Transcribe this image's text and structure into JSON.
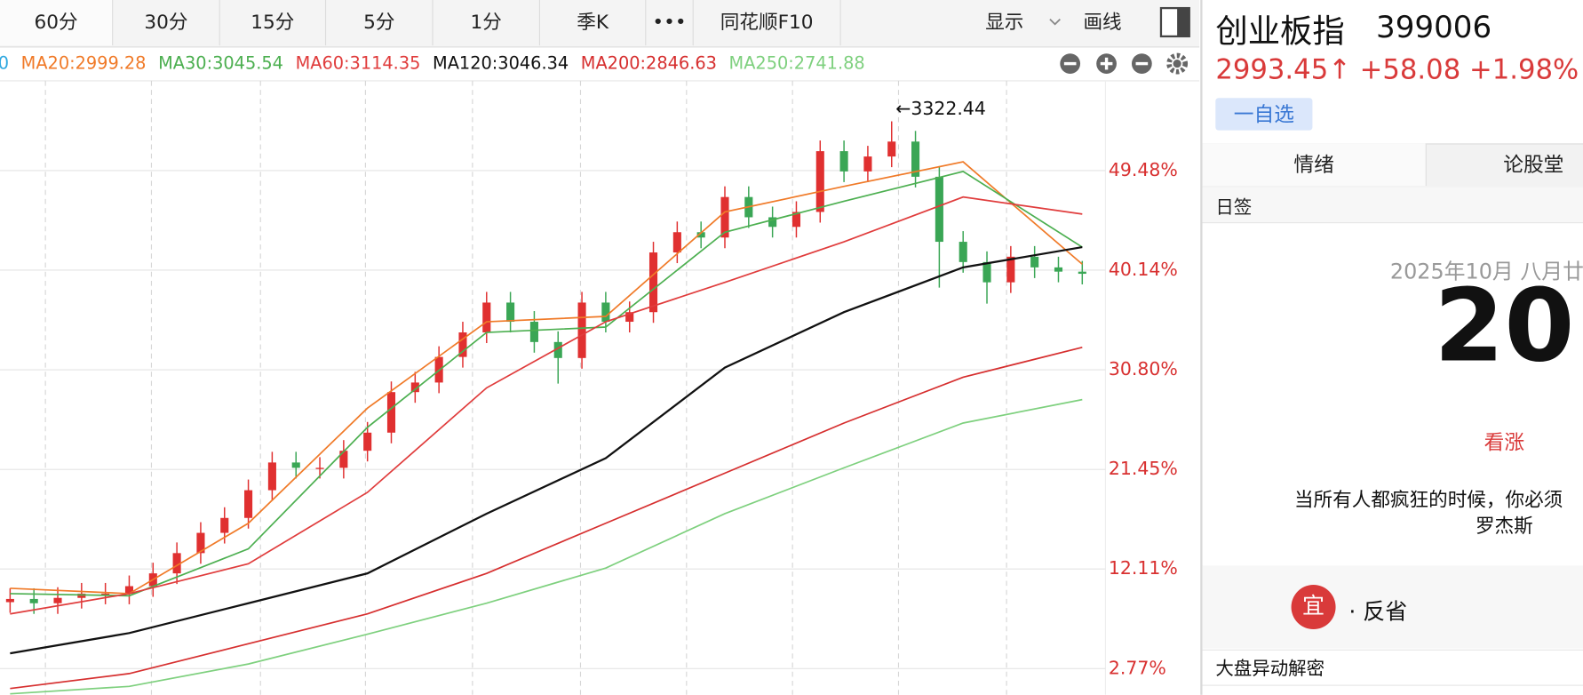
{
  "toolbar": {
    "tabs": [
      "60分",
      "30分",
      "15分",
      "5分",
      "1分",
      "季K",
      "•••",
      "同花顺F10"
    ],
    "display": "显示",
    "draw": "画线"
  },
  "ma_legend_fragment": {
    "text": "0",
    "color": "#2fa8e0"
  },
  "chart_data": {
    "type": "candlestick",
    "annotation": "←3322.44",
    "up_color": "#e03030",
    "down_color": "#3aa655",
    "ylim": [
      0.3,
      57.9
    ],
    "yticks": [
      {
        "value": 49.48,
        "label": "49.48%"
      },
      {
        "value": 40.14,
        "label": "40.14%"
      },
      {
        "value": 30.8,
        "label": "30.80%"
      },
      {
        "value": 21.45,
        "label": "21.45%"
      },
      {
        "value": 12.11,
        "label": "12.11%"
      },
      {
        "value": 2.77,
        "label": "2.77%"
      }
    ],
    "grid": true,
    "open": [
      9.0,
      9.3,
      8.9,
      9.4,
      9.8,
      9.8,
      10.5,
      11.7,
      13.6,
      15.5,
      16.9,
      19.5,
      22.1,
      21.6,
      21.6,
      23.2,
      24.9,
      28.7,
      29.6,
      32.0,
      34.3,
      37.1,
      35.3,
      33.4,
      31.9,
      37.1,
      35.3,
      36.2,
      41.8,
      43.7,
      43.2,
      47.0,
      45.1,
      44.2,
      45.6,
      51.3,
      49.4,
      50.8,
      52.2,
      48.9,
      42.8,
      40.9,
      39.0,
      41.4,
      40.4,
      40.0
    ],
    "high": [
      10.3,
      10.3,
      10.4,
      10.8,
      10.8,
      11.5,
      12.7,
      14.6,
      16.5,
      17.9,
      20.5,
      23.1,
      23.1,
      22.6,
      24.2,
      25.9,
      29.7,
      30.6,
      33.0,
      35.3,
      38.1,
      38.1,
      36.3,
      34.4,
      38.1,
      38.1,
      37.2,
      42.8,
      44.7,
      44.7,
      48.0,
      48.0,
      46.1,
      46.6,
      52.3,
      52.3,
      51.8,
      54.1,
      53.2,
      49.9,
      43.8,
      41.9,
      42.4,
      42.4,
      41.4,
      41.0
    ],
    "low": [
      8.0,
      7.9,
      7.9,
      8.4,
      8.8,
      8.8,
      9.5,
      10.7,
      12.6,
      14.5,
      15.9,
      18.5,
      20.6,
      20.6,
      20.6,
      22.2,
      23.9,
      27.7,
      28.6,
      31.0,
      33.3,
      34.3,
      32.4,
      29.5,
      30.9,
      34.3,
      34.3,
      35.2,
      40.8,
      42.2,
      42.2,
      44.1,
      43.2,
      43.2,
      44.6,
      48.4,
      48.4,
      49.8,
      47.9,
      38.5,
      39.9,
      37.0,
      38.0,
      39.4,
      39.0,
      38.8
    ],
    "close": [
      9.3,
      8.9,
      9.4,
      9.8,
      9.8,
      10.5,
      11.7,
      13.6,
      15.5,
      16.9,
      19.5,
      22.1,
      21.6,
      21.6,
      23.2,
      24.9,
      28.7,
      29.6,
      32.0,
      34.3,
      37.1,
      35.3,
      33.4,
      31.9,
      37.1,
      35.3,
      36.2,
      41.8,
      43.7,
      43.2,
      47.0,
      45.1,
      44.2,
      45.6,
      51.3,
      49.4,
      50.8,
      52.2,
      48.9,
      42.8,
      40.9,
      39.0,
      41.4,
      40.4,
      40.0,
      39.8
    ],
    "line_x": [
      0,
      5,
      10,
      15,
      20,
      25,
      30,
      35,
      40,
      45
    ],
    "series": [
      {
        "name": "MA20:2999.28",
        "color": "#f07a28",
        "values": [
          10.3,
          9.8,
          16.4,
          27.2,
          35.3,
          35.8,
          45.6,
          48.0,
          50.3,
          40.7
        ]
      },
      {
        "name": "MA30:3045.54",
        "color": "#4caf50",
        "values": [
          9.8,
          9.6,
          14.0,
          25.4,
          34.3,
          34.8,
          43.7,
          46.6,
          49.4,
          42.3
        ]
      },
      {
        "name": "MA60:3114.35",
        "color": "#e03c3c",
        "values": [
          7.9,
          9.8,
          12.6,
          19.3,
          29.1,
          35.3,
          39.0,
          42.8,
          47.0,
          45.4
        ]
      },
      {
        "name": "MA120:3046.34",
        "color": "#111111",
        "values": [
          4.2,
          6.1,
          8.9,
          11.7,
          17.3,
          22.5,
          31.0,
          36.2,
          40.4,
          42.3
        ]
      },
      {
        "name": "MA200:2846.63",
        "color": "#d62f2f",
        "values": [
          0.9,
          2.3,
          5.1,
          7.9,
          11.7,
          16.4,
          21.1,
          25.8,
          30.1,
          32.9
        ]
      },
      {
        "name": "MA250:2741.88",
        "color": "#7ed07e",
        "values": [
          0.4,
          1.1,
          3.2,
          6.0,
          8.9,
          12.2,
          17.3,
          21.6,
          25.8,
          28.0
        ]
      }
    ]
  },
  "quote_panel": {
    "name": "创业板指",
    "code": "399006",
    "quote": "2993.45↑ +58.08 +1.98%",
    "watchlist": "一自选",
    "tabs": [
      "情绪",
      "论股堂"
    ],
    "daily_card": {
      "title": "日签",
      "date": "2025年10月 八月廿",
      "day": "20",
      "mood": "看涨",
      "quote": "当所有人都疯狂的时候，你必须",
      "author": "罗杰斯",
      "advice_badge": "宜",
      "advice": "· 反省"
    },
    "news_title": "大盘异动解密"
  }
}
